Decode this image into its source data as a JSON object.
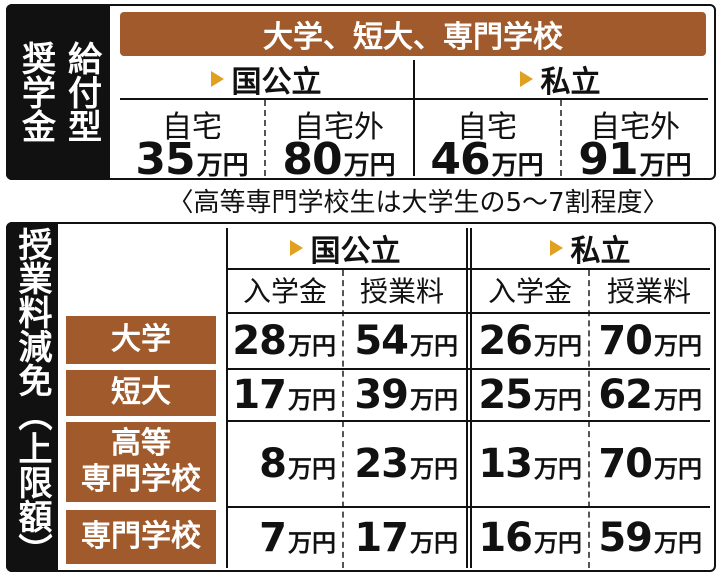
{
  "scholarship": {
    "side_title_col1": "給付型",
    "side_title_col2": "奨学金",
    "header": "大学、短大、専門学校",
    "groups": [
      {
        "label": "国公立",
        "sub": [
          "自宅",
          "自宅外"
        ],
        "amounts": [
          "35",
          "80"
        ]
      },
      {
        "label": "私立",
        "sub": [
          "自宅",
          "自宅外"
        ],
        "amounts": [
          "46",
          "91"
        ]
      }
    ],
    "unit": "万円",
    "note": "〈高等専門学校生は大学生の5～7割程度〉"
  },
  "tuition": {
    "side_title": "授業料減免（上限額）",
    "groups": [
      "国公立",
      "私立"
    ],
    "columns": [
      "入学金",
      "授業料",
      "入学金",
      "授業料"
    ],
    "unit": "万円",
    "rows": [
      {
        "label_line1": "大学",
        "label_line2": "",
        "values": [
          "28",
          "54",
          "26",
          "70"
        ]
      },
      {
        "label_line1": "短大",
        "label_line2": "",
        "values": [
          "17",
          "39",
          "25",
          "62"
        ]
      },
      {
        "label_line1": "高等",
        "label_line2": "専門学校",
        "values": [
          "8",
          "23",
          "13",
          "70"
        ]
      },
      {
        "label_line1": "専門学校",
        "label_line2": "",
        "values": [
          "7",
          "17",
          "16",
          "59"
        ]
      }
    ]
  },
  "colors": {
    "accent_brown": "#a05a2c",
    "triangle_gold": "#e0a020",
    "side_black": "#111111"
  }
}
